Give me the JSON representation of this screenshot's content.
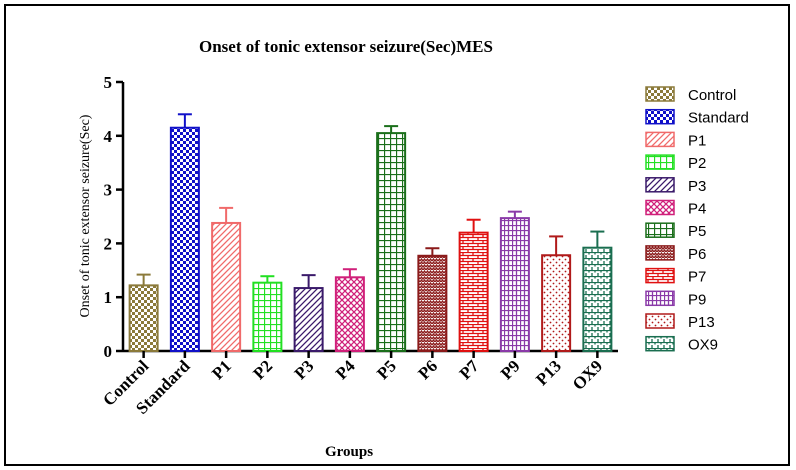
{
  "chart_data": {
    "type": "bar",
    "title": "Onset of tonic extensor seizure(Sec)MES",
    "xlabel": "Groups",
    "ylabel": "Onset of tonic extensor seizure(Sec)",
    "ylim": [
      0,
      5
    ],
    "yticks": [
      "0",
      "1",
      "2",
      "3",
      "4",
      "5"
    ],
    "error_bars": true,
    "legend_position": "right",
    "categories": [
      "Control",
      "Standard",
      "P1",
      "P2",
      "P3",
      "P4",
      "P5",
      "P6",
      "P7",
      "P9",
      "P13",
      "OX9"
    ],
    "values": [
      1.22,
      4.15,
      2.38,
      1.27,
      1.17,
      1.37,
      4.05,
      1.77,
      2.2,
      2.47,
      1.78,
      1.92
    ],
    "errors": [
      0.2,
      0.25,
      0.28,
      0.12,
      0.24,
      0.15,
      0.13,
      0.14,
      0.24,
      0.12,
      0.35,
      0.3
    ],
    "colors": [
      "#8b7a3a",
      "#1010c8",
      "#f06a6a",
      "#22e022",
      "#3a1a6a",
      "#d0207a",
      "#1a6e1a",
      "#8b1a1a",
      "#e01010",
      "#8a3aa8",
      "#b01a1a",
      "#1a6e50"
    ],
    "patterns": [
      "checker",
      "checker",
      "diag",
      "grid",
      "diag",
      "cross",
      "grid",
      "zigzag",
      "brick",
      "hbrick",
      "dots",
      "vdash"
    ],
    "legend": [
      "Control",
      "Standard",
      "P1",
      "P2",
      "P3",
      "P4",
      "P5",
      "P6",
      "P7",
      "P9",
      "P13",
      "OX9"
    ]
  }
}
